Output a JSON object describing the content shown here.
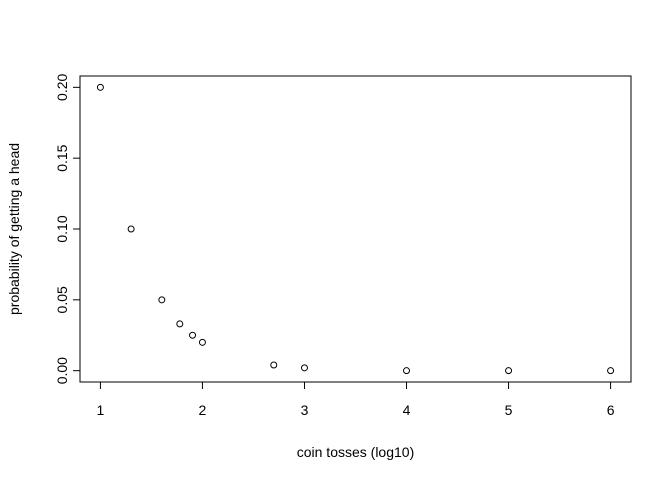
{
  "chart_data": {
    "type": "scatter",
    "title": "",
    "xlabel": "coin tosses (log10)",
    "ylabel": "probability of getting a head",
    "xlim": [
      0.8,
      6.2
    ],
    "ylim": [
      -0.008,
      0.208
    ],
    "x_ticks": [
      1,
      2,
      3,
      4,
      5,
      6
    ],
    "x_tick_labels": [
      "1",
      "2",
      "3",
      "4",
      "5",
      "6"
    ],
    "y_ticks": [
      0.0,
      0.05,
      0.1,
      0.15,
      0.2
    ],
    "y_tick_labels": [
      "0.00",
      "0.05",
      "0.10",
      "0.15",
      "0.20"
    ],
    "grid": false,
    "marker": "open-circle",
    "x": [
      1.0,
      1.301,
      1.602,
      1.778,
      1.903,
      2.0,
      2.699,
      3.0,
      4.0,
      5.0,
      6.0
    ],
    "y": [
      0.2,
      0.1,
      0.05,
      0.033,
      0.025,
      0.02,
      0.004,
      0.002,
      0.0,
      0.0,
      0.0
    ]
  }
}
